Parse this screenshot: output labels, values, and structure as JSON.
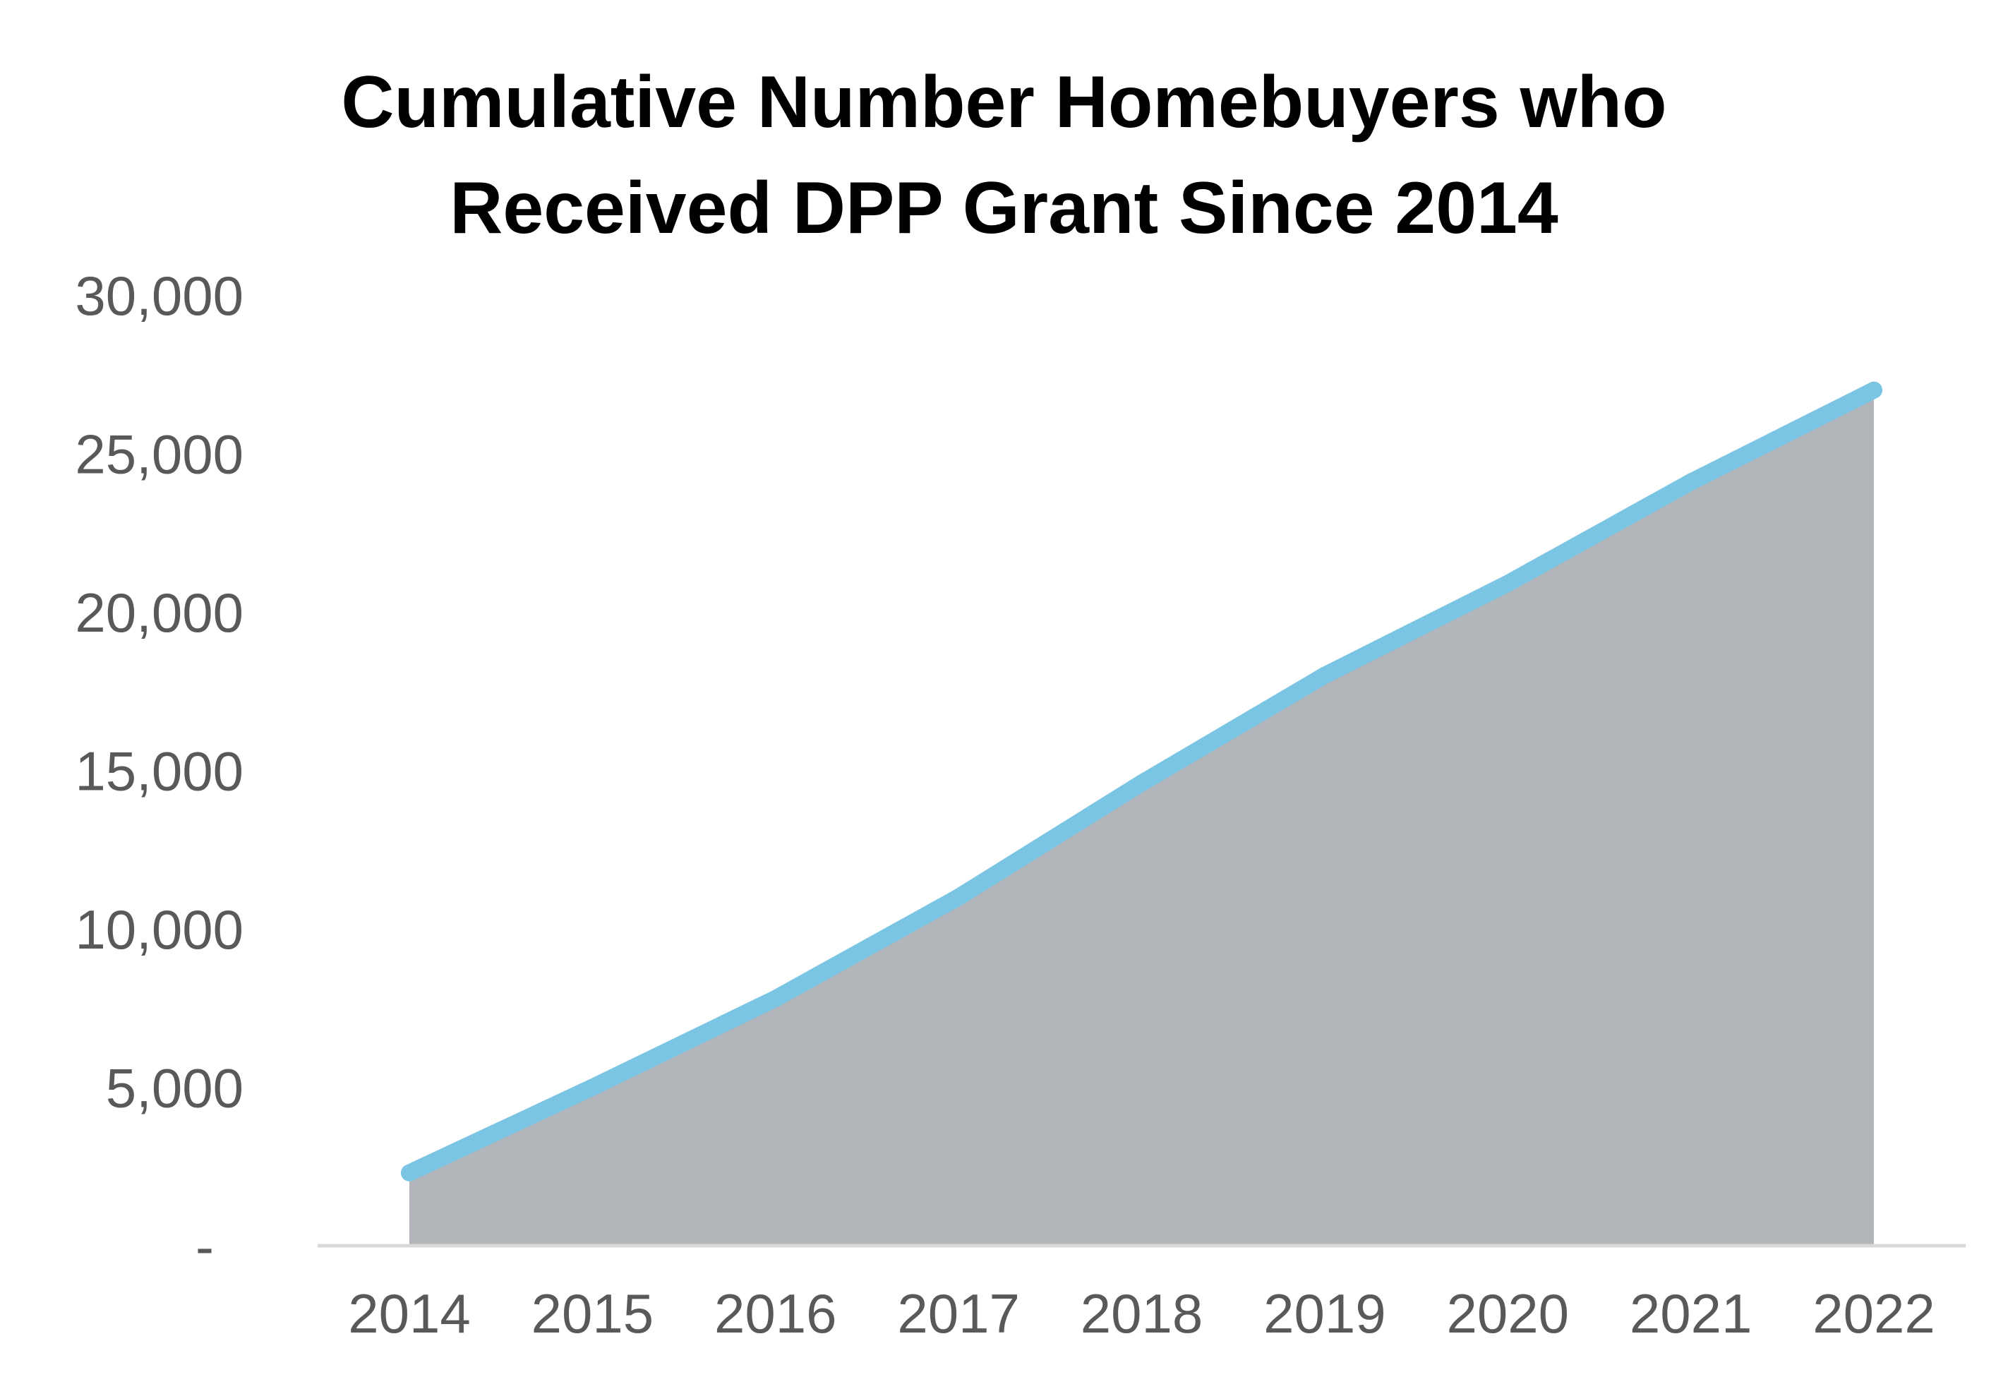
{
  "chart_data": {
    "type": "area",
    "title": "Cumulative Number Homebuyers who Received DPP Grant Since 2014",
    "title_lines": [
      "Cumulative Number Homebuyers who",
      "Received DPP Grant Since 2014"
    ],
    "xlabel": "",
    "ylabel": "",
    "categories": [
      "2014",
      "2015",
      "2016",
      "2017",
      "2018",
      "2019",
      "2020",
      "2021",
      "2022"
    ],
    "series": [
      {
        "values": [
          2300,
          5000,
          7800,
          11000,
          14600,
          18000,
          20900,
          24100,
          27000
        ]
      }
    ],
    "ylim": [
      0,
      30000
    ],
    "y_ticks": [
      {
        "value": 0,
        "label": "-"
      },
      {
        "value": 5000,
        "label": "5,000"
      },
      {
        "value": 10000,
        "label": "10,000"
      },
      {
        "value": 15000,
        "label": "15,000"
      },
      {
        "value": 20000,
        "label": "20,000"
      },
      {
        "value": 25000,
        "label": "25,000"
      },
      {
        "value": 30000,
        "label": "30,000"
      }
    ],
    "grid": false,
    "legend": "none",
    "colors": {
      "line": "#7ac4e4",
      "area": "#b2b6ba",
      "axis": "#d9d9d9",
      "tick_text": "#595959",
      "title_text": "#000000"
    }
  }
}
